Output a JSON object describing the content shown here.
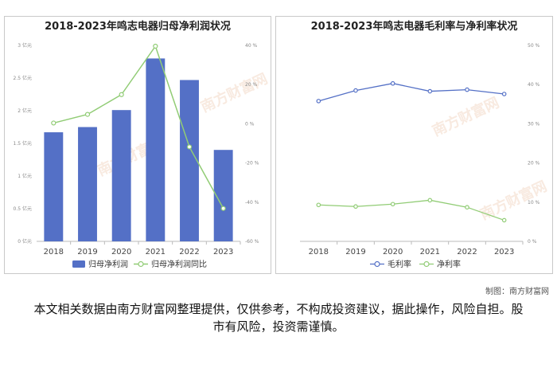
{
  "credit": "制图：南方财富网",
  "disclaimer": "本文相关数据由南方财富网整理提供，仅供参考，不构成投资建议，据此操作，风险自担。股市有风险，投资需谨慎。",
  "watermark": "南方财富网",
  "chart_data": [
    {
      "type": "bar",
      "title": "2018-2023年鸣志电器归母净利润状况",
      "categories": [
        "2018",
        "2019",
        "2020",
        "2021",
        "2022",
        "2023"
      ],
      "series": [
        {
          "name": "归母净利润",
          "type": "bar",
          "axis": "left",
          "color": "#5470c6",
          "values": [
            1.67,
            1.75,
            2.01,
            2.8,
            2.47,
            1.4
          ]
        },
        {
          "name": "归母净利润同比",
          "type": "line",
          "axis": "right",
          "color": "#91cc75",
          "values": [
            0.4,
            4.8,
            14.9,
            39.6,
            -11.8,
            -43.2
          ]
        }
      ],
      "y_left": {
        "min": 0,
        "max": 3,
        "step": 0.5,
        "unit": "亿元",
        "ticks": [
          "0 亿元",
          "0.5 亿元",
          "1 亿元",
          "1.5 亿元",
          "2 亿元",
          "2.5 亿元",
          "3 亿元"
        ]
      },
      "y_right": {
        "min": -60,
        "max": 40,
        "step": 20,
        "unit": "%",
        "ticks": [
          "-60 %",
          "-40 %",
          "-20 %",
          "0 %",
          "20 %",
          "40 %"
        ]
      },
      "grid": false,
      "legend": "bottom"
    },
    {
      "type": "line",
      "title": "2018-2023年鸣志电器毛利率与净利率状况",
      "categories": [
        "2018",
        "2019",
        "2020",
        "2021",
        "2022",
        "2023"
      ],
      "series": [
        {
          "name": "毛利率",
          "color": "#5470c6",
          "values": [
            35.8,
            38.5,
            40.3,
            38.3,
            38.7,
            37.6
          ]
        },
        {
          "name": "净利率",
          "color": "#91cc75",
          "values": [
            9.3,
            8.9,
            9.5,
            10.5,
            8.7,
            5.4
          ]
        }
      ],
      "y_right": {
        "min": 0,
        "max": 50,
        "step": 10,
        "unit": "%",
        "ticks": [
          "0 %",
          "10 %",
          "20 %",
          "30 %",
          "40 %",
          "50 %"
        ]
      },
      "grid": false,
      "legend": "bottom"
    }
  ]
}
